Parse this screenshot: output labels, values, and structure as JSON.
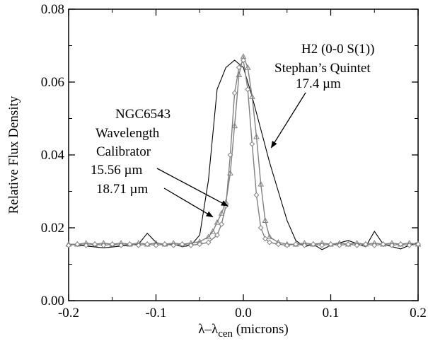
{
  "chart_data": {
    "type": "line",
    "xlabel": "λ–λ",
    "xlabel_sub": "cen",
    "xlabel_suffix": " (microns)",
    "ylabel": "Relative Flux Density",
    "xlim": [
      -0.2,
      0.2
    ],
    "ylim": [
      0.0,
      0.08
    ],
    "x_ticks": [
      -0.2,
      -0.1,
      0.0,
      0.1,
      0.2
    ],
    "x_tick_labels": [
      "-0.2",
      "-0.1",
      "0.0",
      "0.1",
      "0.2"
    ],
    "y_ticks": [
      0.0,
      0.02,
      0.04,
      0.06,
      0.08
    ],
    "y_tick_labels": [
      "0.00",
      "0.02",
      "0.04",
      "0.06",
      "0.08"
    ],
    "grid": false,
    "series": [
      {
        "color": "#000000",
        "marker": "none",
        "x": [
          -0.2,
          -0.18,
          -0.16,
          -0.14,
          -0.12,
          -0.11,
          -0.1,
          -0.09,
          -0.08,
          -0.07,
          -0.06,
          -0.05,
          -0.04,
          -0.03,
          -0.02,
          -0.01,
          0.0,
          0.01,
          0.02,
          0.03,
          0.04,
          0.05,
          0.06,
          0.07,
          0.08,
          0.09,
          0.1,
          0.12,
          0.14,
          0.15,
          0.16,
          0.18,
          0.19,
          0.2
        ],
        "values": [
          0.0155,
          0.015,
          0.0145,
          0.015,
          0.0155,
          0.0185,
          0.016,
          0.0152,
          0.0155,
          0.0148,
          0.0152,
          0.018,
          0.033,
          0.058,
          0.064,
          0.066,
          0.064,
          0.056,
          0.047,
          0.038,
          0.03,
          0.022,
          0.0165,
          0.0148,
          0.0155,
          0.014,
          0.0152,
          0.0165,
          0.0148,
          0.019,
          0.0155,
          0.0142,
          0.0152,
          0.016
        ]
      },
      {
        "color": "#808080",
        "marker": "triangle",
        "x": [
          -0.2,
          -0.19,
          -0.18,
          -0.17,
          -0.16,
          -0.15,
          -0.14,
          -0.13,
          -0.12,
          -0.11,
          -0.1,
          -0.09,
          -0.08,
          -0.07,
          -0.06,
          -0.05,
          -0.04,
          -0.035,
          -0.03,
          -0.025,
          -0.02,
          -0.015,
          -0.01,
          -0.005,
          0.0,
          0.005,
          0.01,
          0.015,
          0.02,
          0.025,
          0.03,
          0.04,
          0.05,
          0.06,
          0.07,
          0.08,
          0.09,
          0.1,
          0.11,
          0.12,
          0.13,
          0.14,
          0.15,
          0.16,
          0.17,
          0.18,
          0.19,
          0.2
        ],
        "values": [
          0.0155,
          0.0155,
          0.0158,
          0.0155,
          0.0158,
          0.0155,
          0.0158,
          0.0155,
          0.0158,
          0.0155,
          0.0158,
          0.0155,
          0.0158,
          0.0155,
          0.0158,
          0.0162,
          0.0175,
          0.019,
          0.0215,
          0.024,
          0.027,
          0.035,
          0.048,
          0.062,
          0.067,
          0.064,
          0.056,
          0.045,
          0.032,
          0.022,
          0.0175,
          0.016,
          0.0155,
          0.0155,
          0.0158,
          0.0155,
          0.0158,
          0.0155,
          0.0158,
          0.0155,
          0.0158,
          0.0155,
          0.0158,
          0.0155,
          0.0158,
          0.0155,
          0.0158,
          0.0155
        ]
      },
      {
        "color": "#808080",
        "marker": "diamond",
        "x": [
          -0.2,
          -0.19,
          -0.18,
          -0.17,
          -0.16,
          -0.15,
          -0.14,
          -0.13,
          -0.12,
          -0.11,
          -0.1,
          -0.09,
          -0.08,
          -0.07,
          -0.06,
          -0.05,
          -0.04,
          -0.03,
          -0.025,
          -0.02,
          -0.015,
          -0.01,
          -0.005,
          0.0,
          0.005,
          0.01,
          0.015,
          0.02,
          0.025,
          0.03,
          0.04,
          0.05,
          0.06,
          0.07,
          0.08,
          0.09,
          0.1,
          0.11,
          0.12,
          0.13,
          0.14,
          0.15,
          0.16,
          0.17,
          0.18,
          0.19,
          0.2
        ],
        "values": [
          0.0152,
          0.0155,
          0.0152,
          0.0155,
          0.0152,
          0.0155,
          0.0152,
          0.0155,
          0.0152,
          0.0155,
          0.0152,
          0.0155,
          0.0152,
          0.0155,
          0.0152,
          0.0155,
          0.016,
          0.018,
          0.021,
          0.026,
          0.04,
          0.057,
          0.064,
          0.066,
          0.058,
          0.043,
          0.029,
          0.02,
          0.017,
          0.016,
          0.0155,
          0.0152,
          0.0155,
          0.0152,
          0.0155,
          0.0152,
          0.0155,
          0.0152,
          0.0155,
          0.0152,
          0.0155,
          0.0152,
          0.0155,
          0.0152,
          0.0155,
          0.0152,
          0.0155
        ]
      }
    ],
    "annotations": [
      {
        "lines": [
          "H2 (0-0 S(1))",
          "Stephan’s Quintet",
          "17.4 µm"
        ],
        "arrow_to": [
          0.032,
          0.042
        ]
      },
      {
        "lines": [
          "NGC6543",
          "Wavelength",
          "Calibrator",
          "15.56 µm",
          "18.71 µm"
        ],
        "arrow_to_a": [
          -0.018,
          0.026
        ],
        "arrow_to_b": [
          -0.035,
          0.023
        ]
      }
    ]
  }
}
